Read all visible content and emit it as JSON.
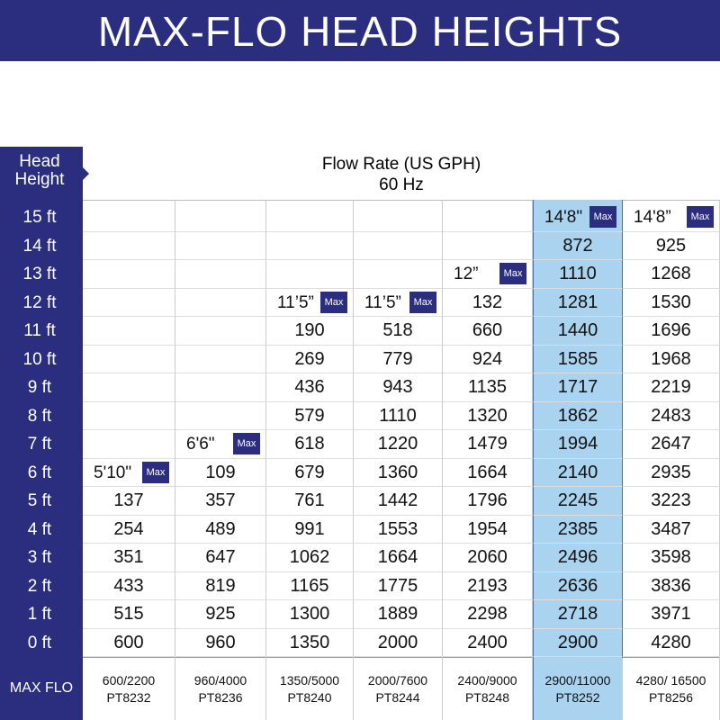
{
  "header": {
    "title": "MAX-FLO HEAD HEIGHTS"
  },
  "table": {
    "corner": [
      "Head",
      "Height"
    ],
    "flow_title": "Flow Rate (US GPH)",
    "frequency": "60 Hz",
    "rows": [
      "15 ft",
      "14 ft",
      "13 ft",
      "12 ft",
      "11 ft",
      "10 ft",
      "9 ft",
      "8 ft",
      "7 ft",
      "6 ft",
      "5 ft",
      "4 ft",
      "3 ft",
      "2 ft",
      "1 ft",
      "0 ft"
    ],
    "max_tag": "Max",
    "footer_label": "MAX FLO",
    "columns": [
      {
        "max_height": "5'10\"",
        "values": [
          137,
          254,
          351,
          433,
          515,
          600
        ],
        "flow": "600/2200",
        "model": "PT8232"
      },
      {
        "max_height": "6'6\"",
        "values": [
          109,
          357,
          489,
          647,
          819,
          925,
          960
        ],
        "flow": "960/4000",
        "model": "PT8236"
      },
      {
        "max_height": "11’5”",
        "values": [
          190,
          269,
          436,
          579,
          618,
          679,
          761,
          991,
          1062,
          1165,
          1300,
          1350
        ],
        "flow": "1350/5000",
        "model": "PT8240"
      },
      {
        "max_height": "11’5”",
        "values": [
          518,
          779,
          943,
          1110,
          1220,
          1360,
          1442,
          1553,
          1664,
          1775,
          1889,
          2000
        ],
        "flow": "2000/7600",
        "model": "PT8244"
      },
      {
        "max_height": "12”",
        "values": [
          132,
          660,
          924,
          1135,
          1320,
          1479,
          1664,
          1796,
          1954,
          2060,
          2193,
          2298,
          2400
        ],
        "flow": "2400/9000",
        "model": "PT8248"
      },
      {
        "max_height": "14'8\"",
        "values": [
          872,
          1110,
          1281,
          1440,
          1585,
          1717,
          1862,
          1994,
          2140,
          2245,
          2385,
          2496,
          2636,
          2718,
          2900
        ],
        "flow": "2900/11000",
        "model": "PT8252",
        "highlight": true
      },
      {
        "max_height": "14'8”",
        "values": [
          925,
          1268,
          1530,
          1696,
          1968,
          2219,
          2483,
          2647,
          2935,
          3223,
          3487,
          3598,
          3836,
          3971,
          4280
        ],
        "flow": "4280/ 16500",
        "model": "PT8256"
      }
    ]
  }
}
